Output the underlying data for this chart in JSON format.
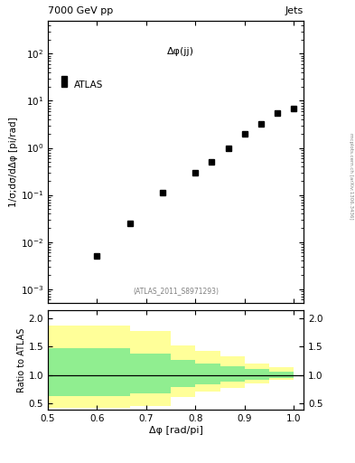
{
  "title_left": "7000 GeV pp",
  "title_right": "Jets",
  "annotation": "Δφ(jj)",
  "reference": "(ATLAS_2011_S8971293)",
  "ylabel_main": "1/σ;dσ/dΔφ [pi/rad]",
  "ylabel_ratio": "Ratio to ATLAS",
  "xlabel": "Δφ [rad/pi]",
  "side_label": "mcplots.cern.ch [arXiv:1306.3436]",
  "data_x": [
    0.533,
    0.6,
    0.667,
    0.733,
    0.8,
    0.833,
    0.867,
    0.9,
    0.933,
    0.967,
    1.0
  ],
  "data_y": [
    30.0,
    0.005,
    0.025,
    0.11,
    0.3,
    0.5,
    1.0,
    2.0,
    3.3,
    5.5,
    7.0
  ],
  "xlim": [
    0.5,
    1.02
  ],
  "ylim_main": [
    0.0005,
    500.0
  ],
  "ylim_ratio": [
    0.38,
    2.15
  ],
  "ratio_yticks": [
    0.5,
    1.0,
    1.5,
    2.0
  ],
  "green_band_edges": [
    0.5,
    0.6,
    0.667,
    0.75,
    0.8,
    0.85,
    0.9,
    0.95,
    1.0
  ],
  "green_band_lo": [
    0.63,
    0.63,
    0.67,
    0.78,
    0.84,
    0.88,
    0.92,
    0.95,
    0.98
  ],
  "green_band_hi": [
    1.47,
    1.47,
    1.38,
    1.27,
    1.2,
    1.15,
    1.1,
    1.06,
    1.03
  ],
  "yellow_band_edges": [
    0.5,
    0.6,
    0.667,
    0.75,
    0.8,
    0.85,
    0.9,
    0.95,
    1.0
  ],
  "yellow_band_lo": [
    0.41,
    0.41,
    0.44,
    0.61,
    0.7,
    0.77,
    0.85,
    0.91,
    0.96
  ],
  "yellow_band_hi": [
    1.88,
    1.88,
    1.78,
    1.53,
    1.43,
    1.33,
    1.2,
    1.13,
    1.07
  ],
  "marker_color": "black",
  "marker_size": 5,
  "green_color": "#90EE90",
  "yellow_color": "#FFFF99",
  "bg_color": "white"
}
